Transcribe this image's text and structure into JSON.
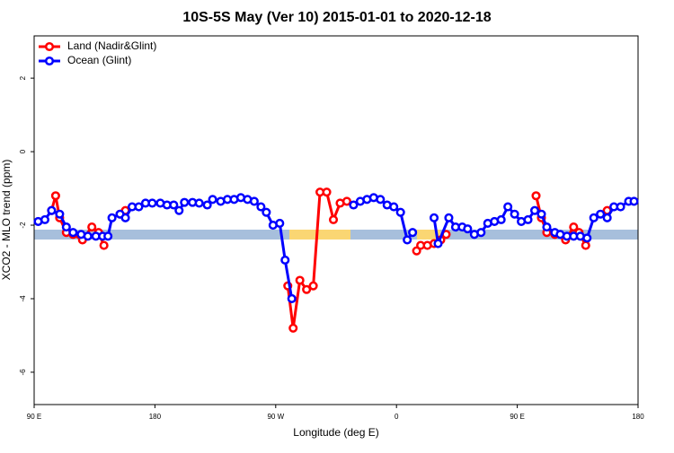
{
  "chart_data": {
    "type": "line",
    "title": "10S-5S May (Ver 10)   2015-01-01 to 2020-12-18",
    "x_label": "Longitude (deg E)",
    "y_label": "XCO2 - MLO trend (ppm)",
    "xlim": [
      90,
      540
    ],
    "xticks": [
      {
        "value": 90,
        "label": "90 E"
      },
      180,
      {
        "value": 270,
        "label": "90 W"
      },
      {
        "value": 360,
        "label": "0"
      },
      {
        "value": 450,
        "label": "90 E"
      },
      {
        "value": 540,
        "label": "180"
      }
    ],
    "ylim": [
      -6.88,
      3.15
    ],
    "yticks": [
      -6,
      -4,
      -2,
      0,
      2
    ],
    "legend": "top-left",
    "series": [
      {
        "name": "Land (Nadir&Glint)",
        "color": "#ff0000",
        "x": [
          103,
          106,
          109,
          114,
          119,
          126,
          133,
          138,
          142,
          148,
          154,
          158,
          220,
          279,
          283,
          288,
          293,
          298,
          303,
          308,
          313,
          318,
          323,
          350,
          375,
          378,
          383,
          388,
          393,
          397,
          430,
          464,
          468,
          472,
          478,
          486,
          492,
          496,
          501,
          510,
          517
        ],
        "values": [
          -1.6,
          -1.2,
          -1.8,
          -2.2,
          -2.25,
          -2.4,
          -2.05,
          -2.2,
          -2.55,
          null,
          -1.7,
          -1.6,
          null,
          -3.65,
          -4.8,
          -3.5,
          -3.75,
          -3.65,
          -1.1,
          -1.1,
          -1.85,
          -1.4,
          -1.35,
          null,
          -2.7,
          -2.55,
          -2.55,
          -2.5,
          -2.4,
          -2.25,
          null,
          -1.2,
          -1.8,
          -2.2,
          -2.25,
          -2.4,
          -2.05,
          -2.2,
          -2.55,
          null,
          -1.6
        ]
      },
      {
        "name": "Ocean (Glint)",
        "color": "#0000ff",
        "x": [
          93,
          98,
          103,
          109,
          114,
          119,
          125,
          130,
          136,
          141,
          145,
          148,
          154,
          158,
          163,
          168,
          173,
          178,
          184,
          189,
          194,
          198,
          202,
          208,
          213,
          219,
          223,
          229,
          234,
          239,
          244,
          249,
          254,
          259,
          263,
          268,
          273,
          277,
          282,
          305,
          328,
          333,
          338,
          343,
          348,
          353,
          358,
          363,
          368,
          372,
          380,
          388,
          391,
          399,
          404,
          409,
          413,
          418,
          423,
          428,
          433,
          438,
          443,
          448,
          453,
          458,
          463,
          468,
          472,
          478,
          482,
          487,
          492,
          497,
          502,
          507,
          512,
          517,
          522,
          527,
          533,
          537
        ],
        "values": [
          -1.9,
          -1.85,
          -1.6,
          -1.7,
          -2.05,
          -2.2,
          -2.25,
          -2.3,
          -2.3,
          -2.3,
          -2.3,
          -1.8,
          -1.7,
          -1.8,
          -1.5,
          -1.5,
          -1.4,
          -1.4,
          -1.4,
          -1.45,
          -1.45,
          -1.6,
          -1.38,
          -1.38,
          -1.4,
          -1.45,
          -1.3,
          -1.35,
          -1.3,
          -1.3,
          -1.25,
          -1.3,
          -1.35,
          -1.5,
          -1.65,
          -2.0,
          -1.95,
          -2.95,
          -4.0,
          null,
          -1.45,
          -1.35,
          -1.3,
          -1.25,
          -1.3,
          -1.45,
          -1.5,
          -1.65,
          -2.4,
          -2.2,
          null,
          -1.8,
          -2.5,
          -1.8,
          -2.05,
          -2.05,
          -2.1,
          -2.25,
          -2.2,
          -1.95,
          -1.9,
          -1.85,
          -1.5,
          -1.7,
          -1.9,
          -1.85,
          -1.6,
          -1.7,
          -2.05,
          -2.2,
          -2.25,
          -2.3,
          -2.3,
          -2.3,
          -2.35,
          -1.8,
          -1.7,
          -1.8,
          -1.5,
          -1.5,
          -1.35,
          -1.35
        ]
      }
    ]
  }
}
